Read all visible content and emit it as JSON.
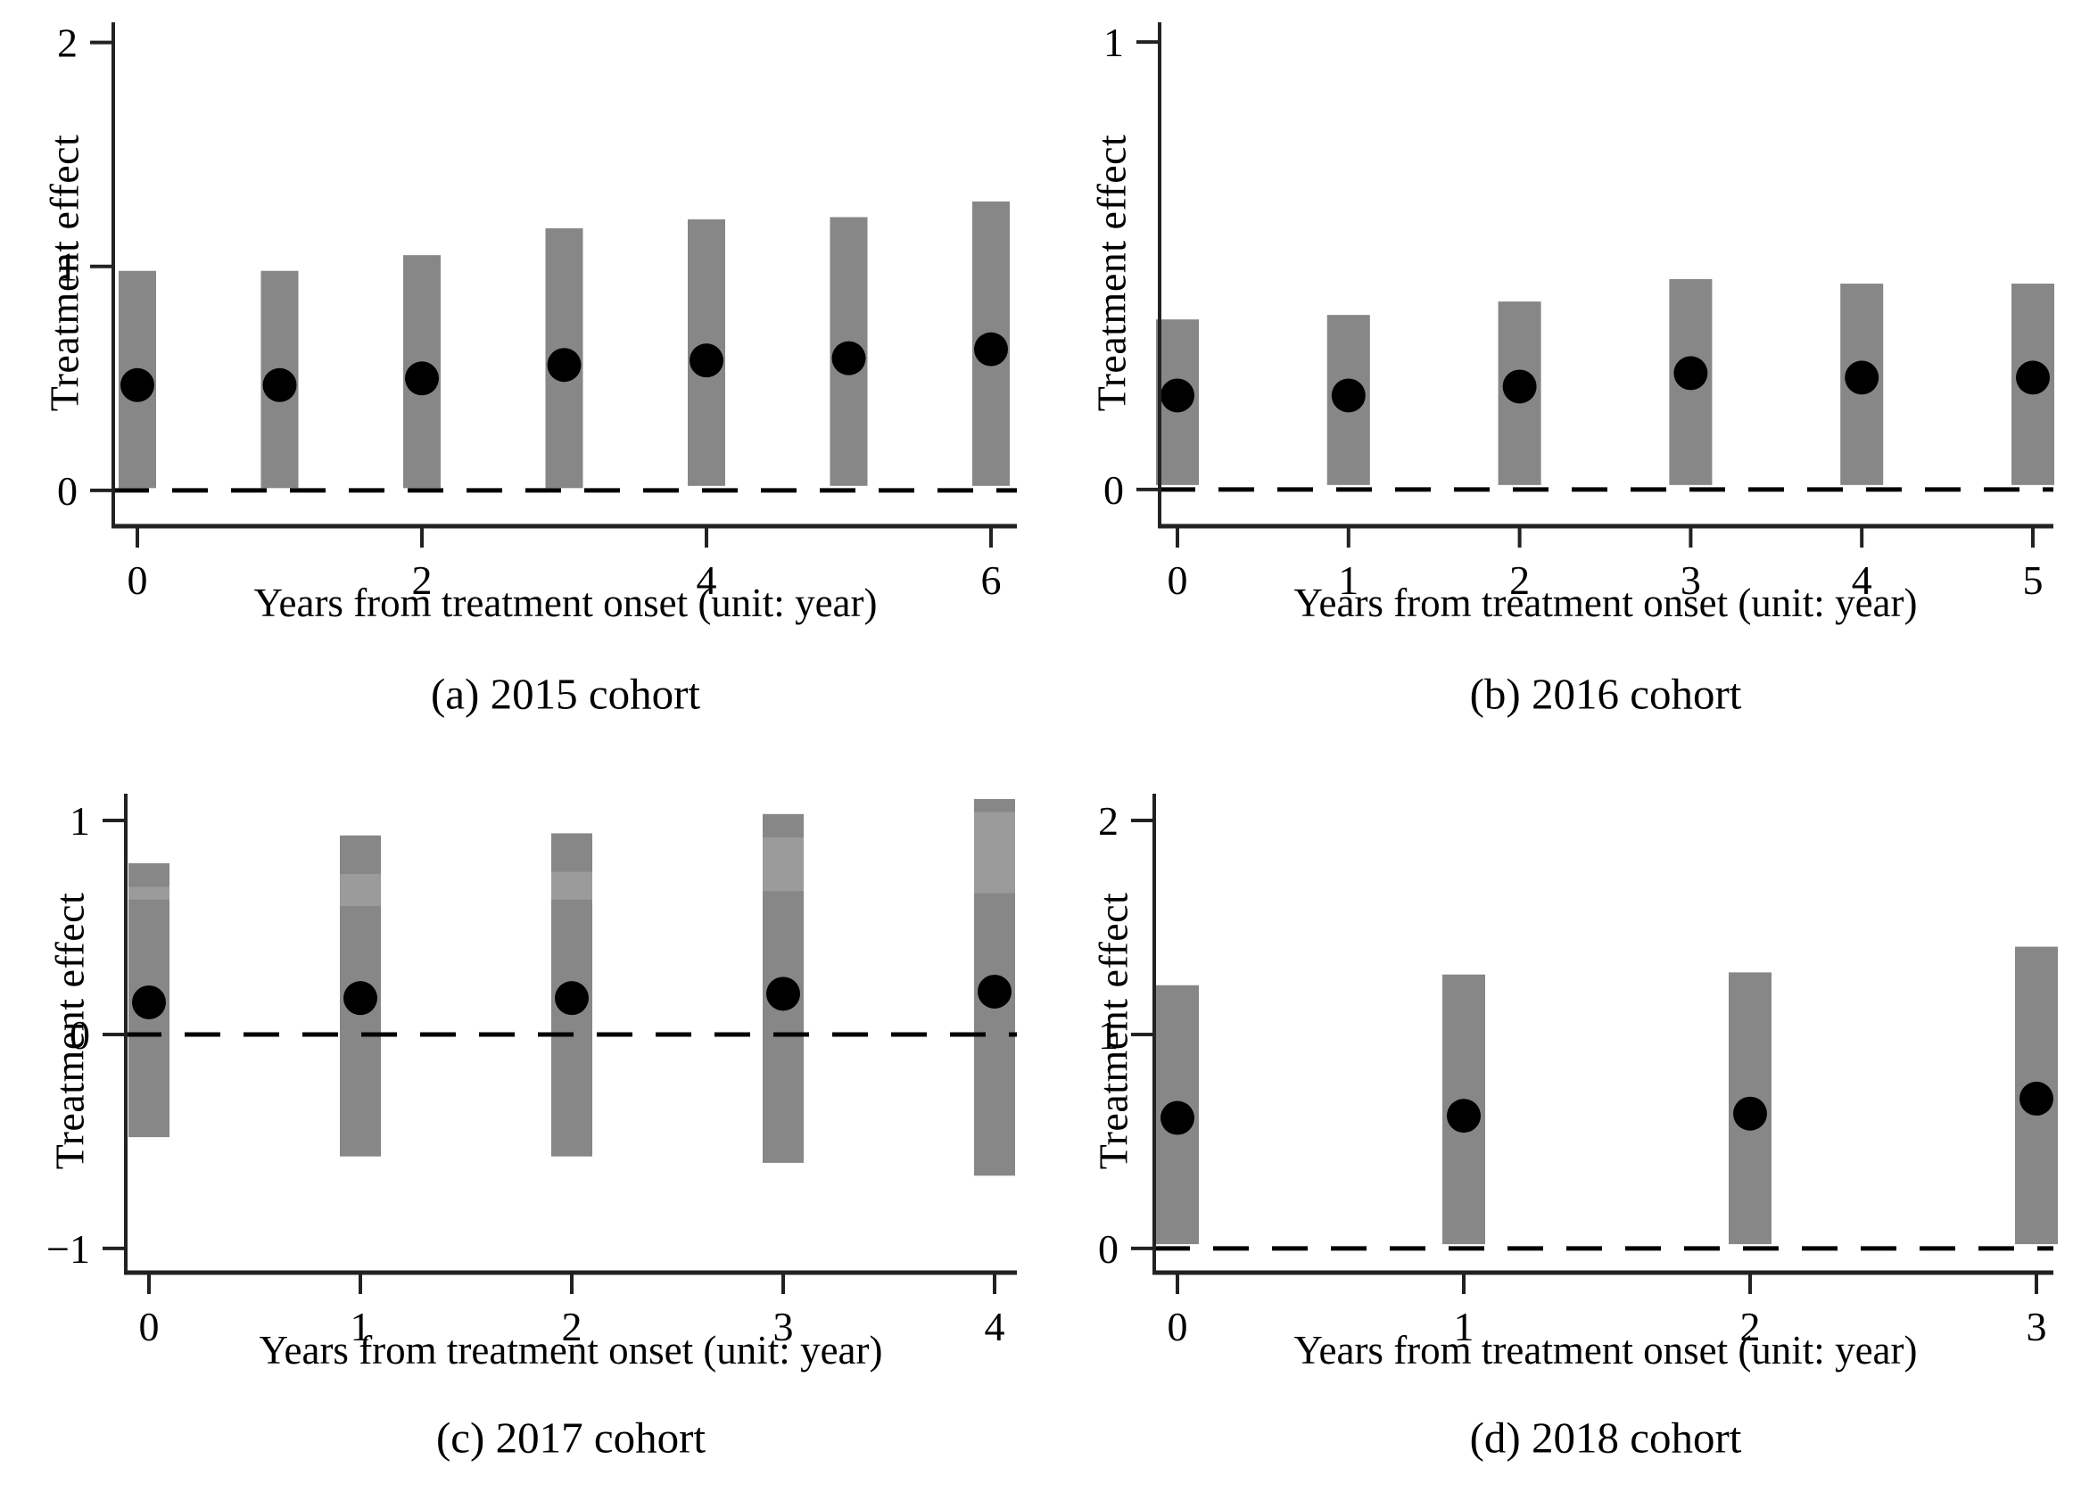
{
  "figure": {
    "background": "#ffffff",
    "description": "Four-panel event-study figure of treatment effects by cohort with 95% confidence bars, point estimates and dashed zero line"
  },
  "colors": {
    "bar": "#878787",
    "bar_light": "#9b9b9b",
    "point": "#000000",
    "zero_line": "#000000",
    "axis": "#222222"
  },
  "chart_data": [
    {
      "id": "a",
      "type": "bar",
      "caption": "(a) 2015 cohort",
      "ylabel": "Treatment effect",
      "xlabel": "Years from treatment onset (unit: year)",
      "x": [
        0,
        1,
        2,
        3,
        4,
        5,
        6
      ],
      "effect": [
        0.47,
        0.47,
        0.5,
        0.56,
        0.58,
        0.59,
        0.63
      ],
      "ci_low": [
        0.01,
        0.01,
        0.01,
        0.01,
        0.02,
        0.02,
        0.02
      ],
      "ci_high": [
        0.98,
        0.98,
        1.05,
        1.17,
        1.21,
        1.22,
        1.29
      ],
      "light_segments": [
        null,
        null,
        null,
        null,
        null,
        null,
        null
      ],
      "ylim": [
        -0.16,
        2.09
      ],
      "ytick_values": [
        0,
        1,
        2
      ],
      "ytick_labels": [
        "0",
        "1",
        "2"
      ],
      "xtick_values": [
        0,
        2,
        4,
        6
      ],
      "xtick_labels": [
        "0",
        "2",
        "4",
        "6"
      ],
      "zero_line": true,
      "grid": false,
      "legend": "none"
    },
    {
      "id": "b",
      "type": "bar",
      "caption": "(b) 2016 cohort",
      "ylabel": "Treatment effect",
      "xlabel": "Years from treatment onset (unit: year)",
      "x": [
        0,
        1,
        2,
        3,
        4,
        5
      ],
      "effect": [
        0.21,
        0.21,
        0.23,
        0.26,
        0.25,
        0.25
      ],
      "ci_low": [
        0.01,
        0.01,
        0.01,
        0.01,
        0.01,
        0.01
      ],
      "ci_high": [
        0.38,
        0.39,
        0.42,
        0.47,
        0.46,
        0.46
      ],
      "light_segments": [
        null,
        null,
        null,
        null,
        null,
        null
      ],
      "ylim": [
        -0.082,
        1.044
      ],
      "ytick_values": [
        0,
        1
      ],
      "ytick_labels": [
        "0",
        "1"
      ],
      "xtick_values": [
        0,
        1,
        2,
        3,
        4,
        5
      ],
      "xtick_labels": [
        "0",
        "1",
        "2",
        "3",
        "4",
        "5"
      ],
      "zero_line": true,
      "grid": false,
      "legend": "none"
    },
    {
      "id": "c",
      "type": "bar",
      "caption": "(c) 2017 cohort",
      "ylabel": "Treatment effect",
      "xlabel": "Years from treatment onset (unit: year)",
      "x": [
        0,
        1,
        2,
        3,
        4
      ],
      "effect": [
        0.15,
        0.17,
        0.17,
        0.19,
        0.2
      ],
      "ci_low": [
        -0.48,
        -0.57,
        -0.57,
        -0.6,
        -0.66
      ],
      "ci_high": [
        0.8,
        0.93,
        0.94,
        1.03,
        1.1
      ],
      "light_segments": [
        [
          0.63,
          0.69
        ],
        [
          0.6,
          0.75
        ],
        [
          0.63,
          0.76
        ],
        [
          0.67,
          0.92
        ],
        [
          0.66,
          1.04
        ]
      ],
      "ylim": [
        -1.113,
        1.125
      ],
      "ytick_values": [
        -1,
        0,
        1
      ],
      "ytick_labels": [
        "−1",
        "0",
        "1"
      ],
      "xtick_values": [
        0,
        1,
        2,
        3,
        4
      ],
      "xtick_labels": [
        "0",
        "1",
        "2",
        "3",
        "4"
      ],
      "zero_line": true,
      "grid": false,
      "legend": "none"
    },
    {
      "id": "d",
      "type": "bar",
      "caption": "(d) 2018 cohort",
      "ylabel": "Treatment effect",
      "xlabel": "Years from treatment onset (unit: year)",
      "x": [
        0,
        1,
        2,
        3
      ],
      "effect": [
        0.61,
        0.62,
        0.63,
        0.7
      ],
      "ci_low": [
        0.02,
        0.02,
        0.02,
        0.02
      ],
      "ci_high": [
        1.23,
        1.28,
        1.29,
        1.41
      ],
      "light_segments": [
        null,
        null,
        null,
        null
      ],
      "ylim": [
        -0.113,
        2.125
      ],
      "ytick_values": [
        0,
        1,
        2
      ],
      "ytick_labels": [
        "0",
        "1",
        "2"
      ],
      "xtick_values": [
        0,
        1,
        2,
        3
      ],
      "xtick_labels": [
        "0",
        "1",
        "2",
        "3"
      ],
      "zero_line": true,
      "grid": false,
      "legend": "none"
    }
  ]
}
